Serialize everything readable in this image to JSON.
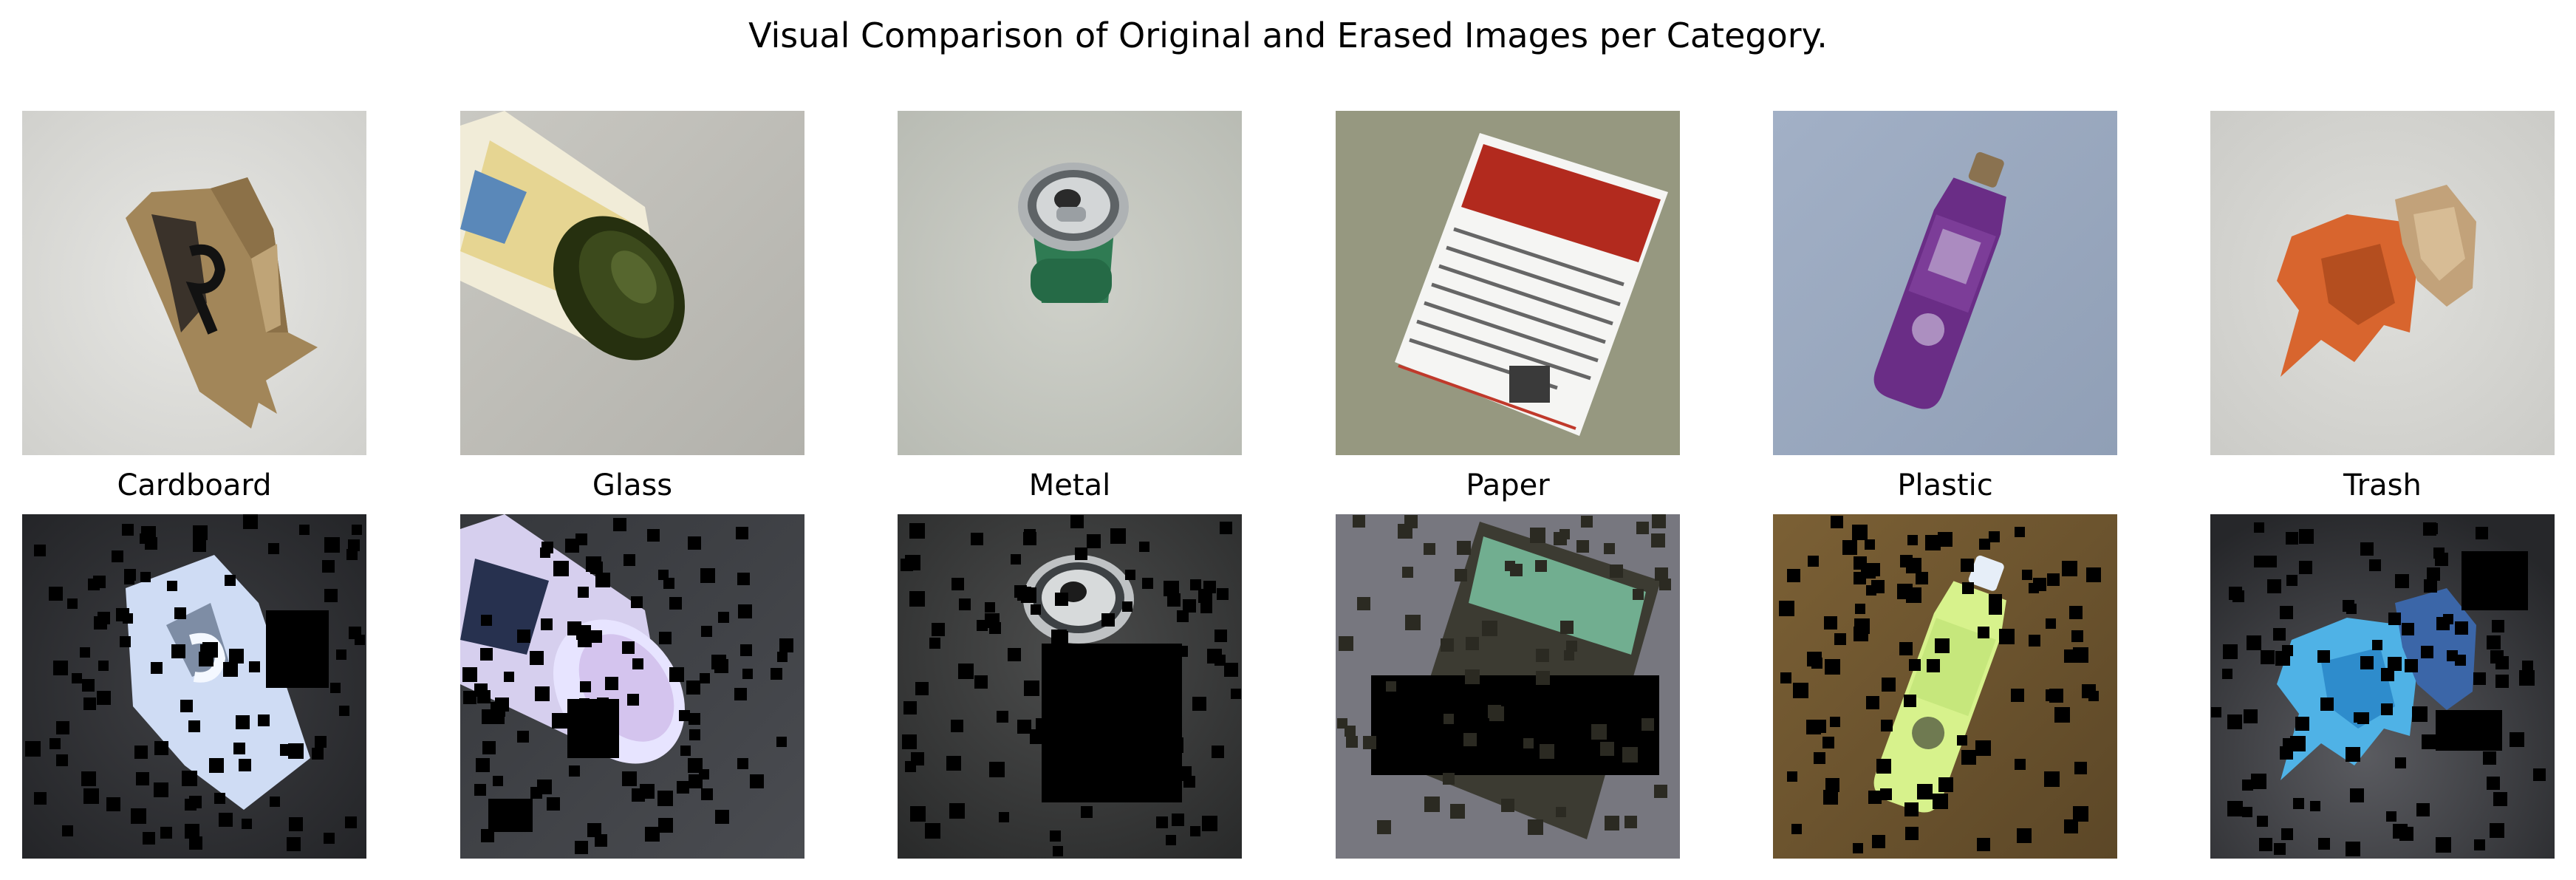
{
  "title": "Visual Comparison of Original and Erased Images per Category.",
  "categories": [
    {
      "label": "Cardboard",
      "original_bg": "#dcdcd9",
      "erased_bg": "#2e2f32",
      "object": "cardboard",
      "object_color": "#a2855a",
      "erased_object_color": "#cfdcf4"
    },
    {
      "label": "Glass",
      "original_bg": "#bdbcb6",
      "erased_bg": "#3d3f44",
      "object": "glass bottle",
      "object_color": "#2f3a17",
      "erased_object_color": "#c9c2e6"
    },
    {
      "label": "Metal",
      "original_bg": "#c1c4bc",
      "erased_bg": "#3b3c3c",
      "object": "metal can",
      "object_color": "#2e7d55",
      "erased_object_color": "#c8c8c8"
    },
    {
      "label": "Paper",
      "original_bg": "#8e9079",
      "erased_bg": "#6c6c72",
      "object": "paper sheet",
      "object_color": "#f4f4f2",
      "erased_object_color": "#87e0b8"
    },
    {
      "label": "Plastic",
      "original_bg": "#9dabc1",
      "erased_bg": "#6d5530",
      "object": "plastic bottle",
      "object_color": "#6a2d86",
      "erased_object_color": "#d7f28c"
    },
    {
      "label": "Trash",
      "original_bg": "#d6d6d2",
      "erased_bg": "#2e2f33",
      "object": "trash",
      "object_color": "#d66a34",
      "erased_object_color": "#4fb2e6"
    }
  ]
}
